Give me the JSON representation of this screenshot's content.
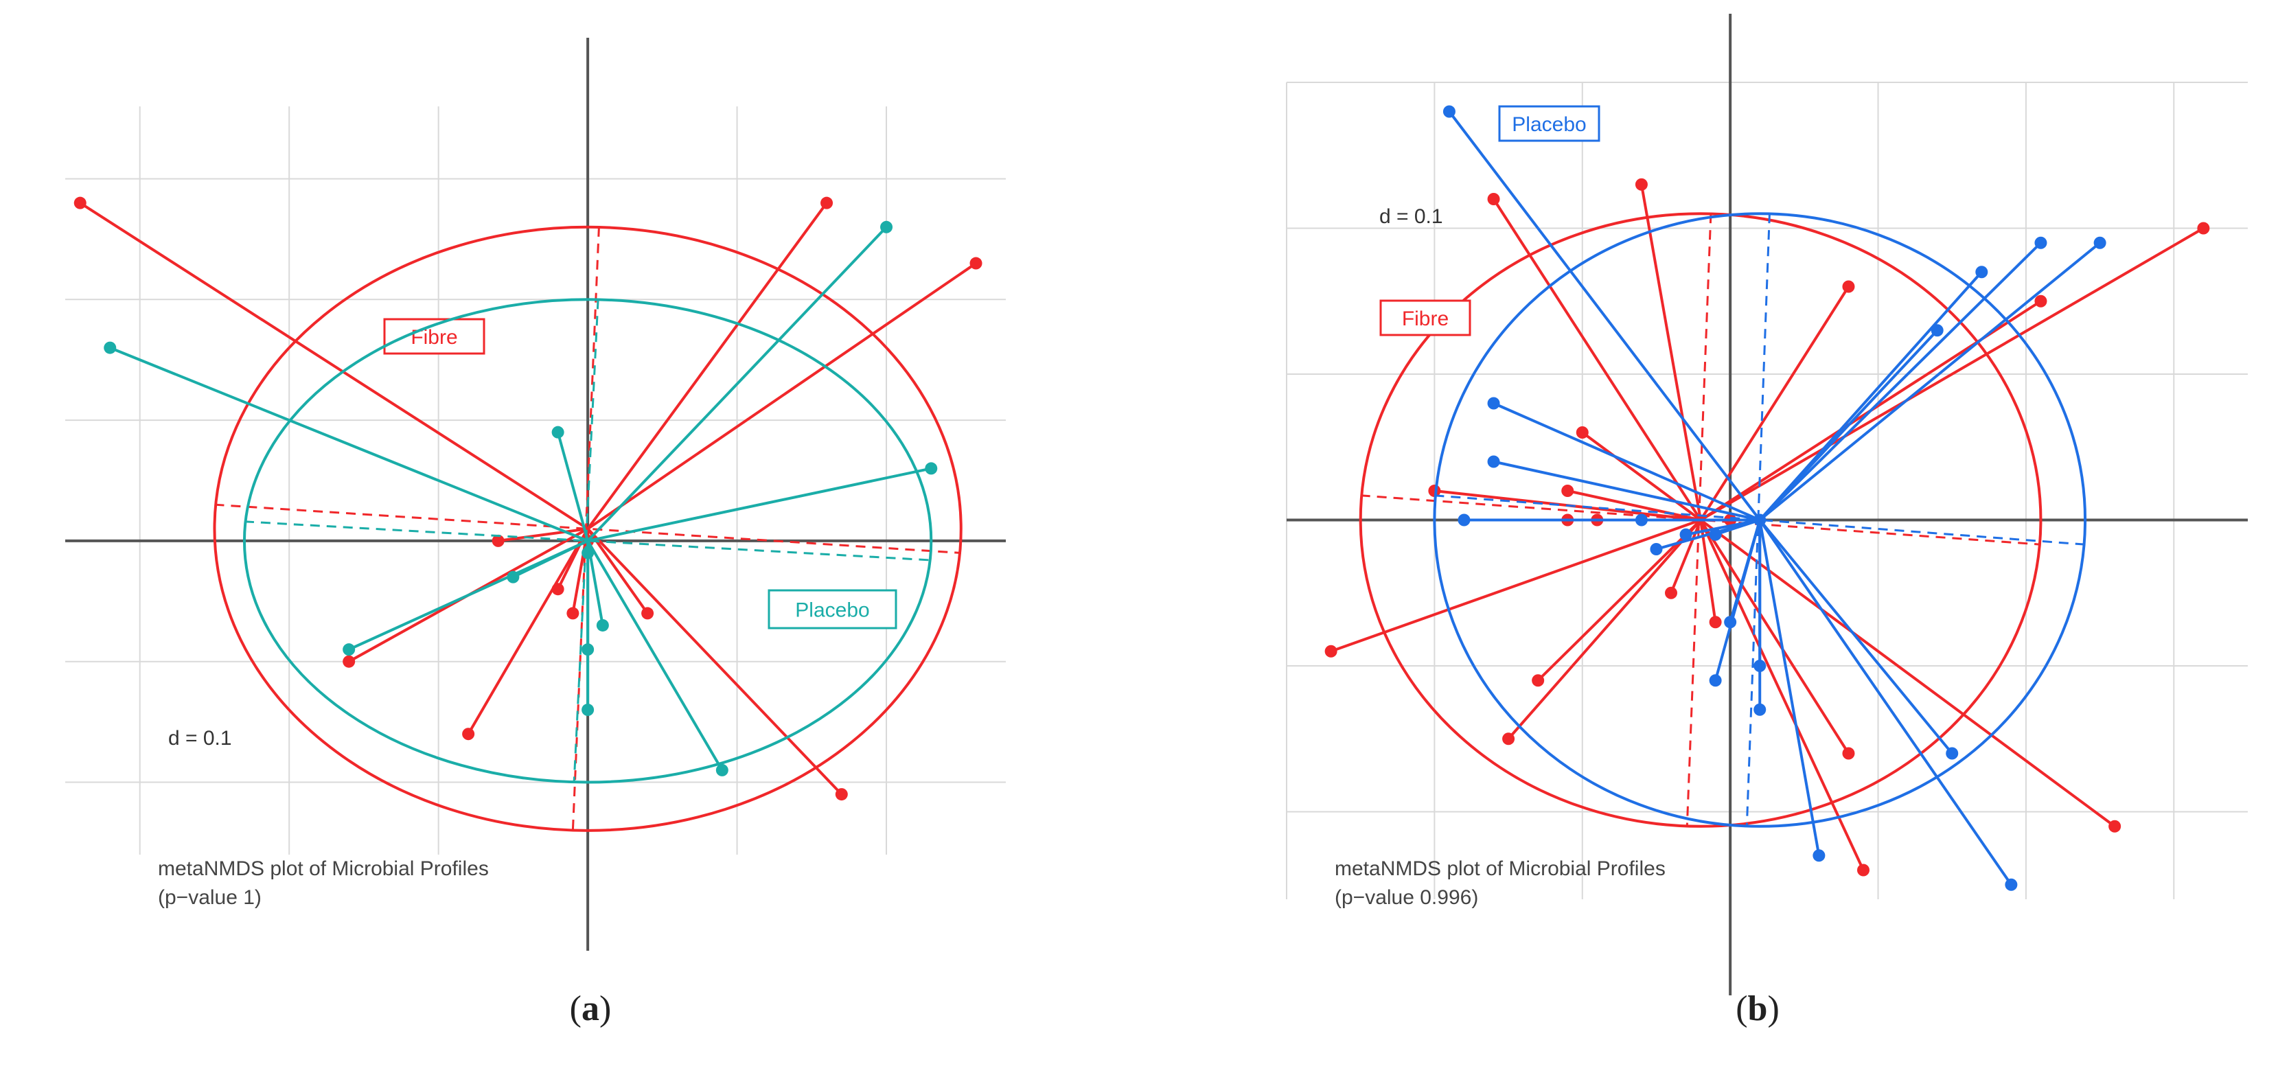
{
  "chart_data": [
    {
      "type": "scatter",
      "panel_label": "a",
      "scale_label": "d = 0.1",
      "footer_line1": "metaNMDS plot of Microbial Profiles",
      "footer_line2": "(p−value 1)",
      "xlim": [
        -0.35,
        0.28
      ],
      "ylim": [
        -0.26,
        0.36
      ],
      "grid": true,
      "series": [
        {
          "name": "Fibre",
          "color": "#f0272a",
          "centroid": [
            0.0,
            0.01
          ],
          "ellipse_radii": [
            0.25,
            0.25
          ],
          "points": [
            [
              -0.34,
              0.28
            ],
            [
              0.16,
              0.28
            ],
            [
              0.26,
              0.23
            ],
            [
              -0.06,
              0.0
            ],
            [
              -0.02,
              -0.04
            ],
            [
              -0.01,
              -0.06
            ],
            [
              0.04,
              -0.06
            ],
            [
              -0.16,
              -0.1
            ],
            [
              -0.08,
              -0.16
            ],
            [
              0.17,
              -0.21
            ],
            [
              0.0,
              0.0
            ]
          ]
        },
        {
          "name": "Placebo",
          "color": "#1aada8",
          "centroid": [
            0.0,
            0.0
          ],
          "ellipse_radii": [
            0.23,
            0.2
          ],
          "points": [
            [
              -0.32,
              0.16
            ],
            [
              0.2,
              0.26
            ],
            [
              -0.02,
              0.09
            ],
            [
              0.23,
              0.06
            ],
            [
              -0.05,
              -0.03
            ],
            [
              -0.16,
              -0.09
            ],
            [
              0.0,
              -0.09
            ],
            [
              0.01,
              -0.07
            ],
            [
              0.0,
              -0.14
            ],
            [
              0.09,
              -0.19
            ],
            [
              0.0,
              -0.01
            ]
          ]
        }
      ]
    },
    {
      "type": "scatter",
      "panel_label": "b",
      "scale_label": "d = 0.1",
      "footer_line1": "metaNMDS plot of Microbial Profiles",
      "footer_line2": "(p−value 0.996)",
      "xlim": [
        -0.3,
        0.35
      ],
      "ylim": [
        -0.26,
        0.3
      ],
      "grid": true,
      "series": [
        {
          "name": "Fibre",
          "color": "#f0272a",
          "centroid": [
            -0.02,
            0.0
          ],
          "ellipse_radii": [
            0.23,
            0.21
          ],
          "points": [
            [
              -0.16,
              0.22
            ],
            [
              -0.06,
              0.23
            ],
            [
              0.08,
              0.16
            ],
            [
              0.32,
              0.2
            ],
            [
              0.21,
              0.15
            ],
            [
              -0.1,
              0.06
            ],
            [
              -0.2,
              0.02
            ],
            [
              -0.11,
              0.02
            ],
            [
              -0.09,
              0.0
            ],
            [
              -0.11,
              0.0
            ],
            [
              -0.27,
              -0.09
            ],
            [
              -0.13,
              -0.11
            ],
            [
              -0.15,
              -0.15
            ],
            [
              -0.04,
              -0.05
            ],
            [
              -0.01,
              -0.07
            ],
            [
              0.08,
              -0.16
            ],
            [
              0.09,
              -0.24
            ],
            [
              0.26,
              -0.21
            ],
            [
              0.0,
              0.0
            ]
          ]
        },
        {
          "name": "Placebo",
          "color": "#1f6fe5",
          "centroid": [
            0.02,
            0.0
          ],
          "ellipse_radii": [
            0.22,
            0.21
          ],
          "points": [
            [
              -0.19,
              0.28
            ],
            [
              0.21,
              0.19
            ],
            [
              0.25,
              0.19
            ],
            [
              0.17,
              0.17
            ],
            [
              0.14,
              0.13
            ],
            [
              -0.16,
              0.08
            ],
            [
              -0.16,
              0.04
            ],
            [
              -0.18,
              0.0
            ],
            [
              -0.06,
              0.0
            ],
            [
              -0.03,
              -0.01
            ],
            [
              -0.05,
              -0.02
            ],
            [
              -0.01,
              -0.01
            ],
            [
              0.0,
              -0.07
            ],
            [
              0.02,
              -0.1
            ],
            [
              -0.01,
              -0.11
            ],
            [
              0.02,
              -0.13
            ],
            [
              0.06,
              -0.23
            ],
            [
              0.15,
              -0.16
            ],
            [
              0.19,
              -0.25
            ],
            [
              0.02,
              0.0
            ]
          ]
        }
      ]
    }
  ]
}
